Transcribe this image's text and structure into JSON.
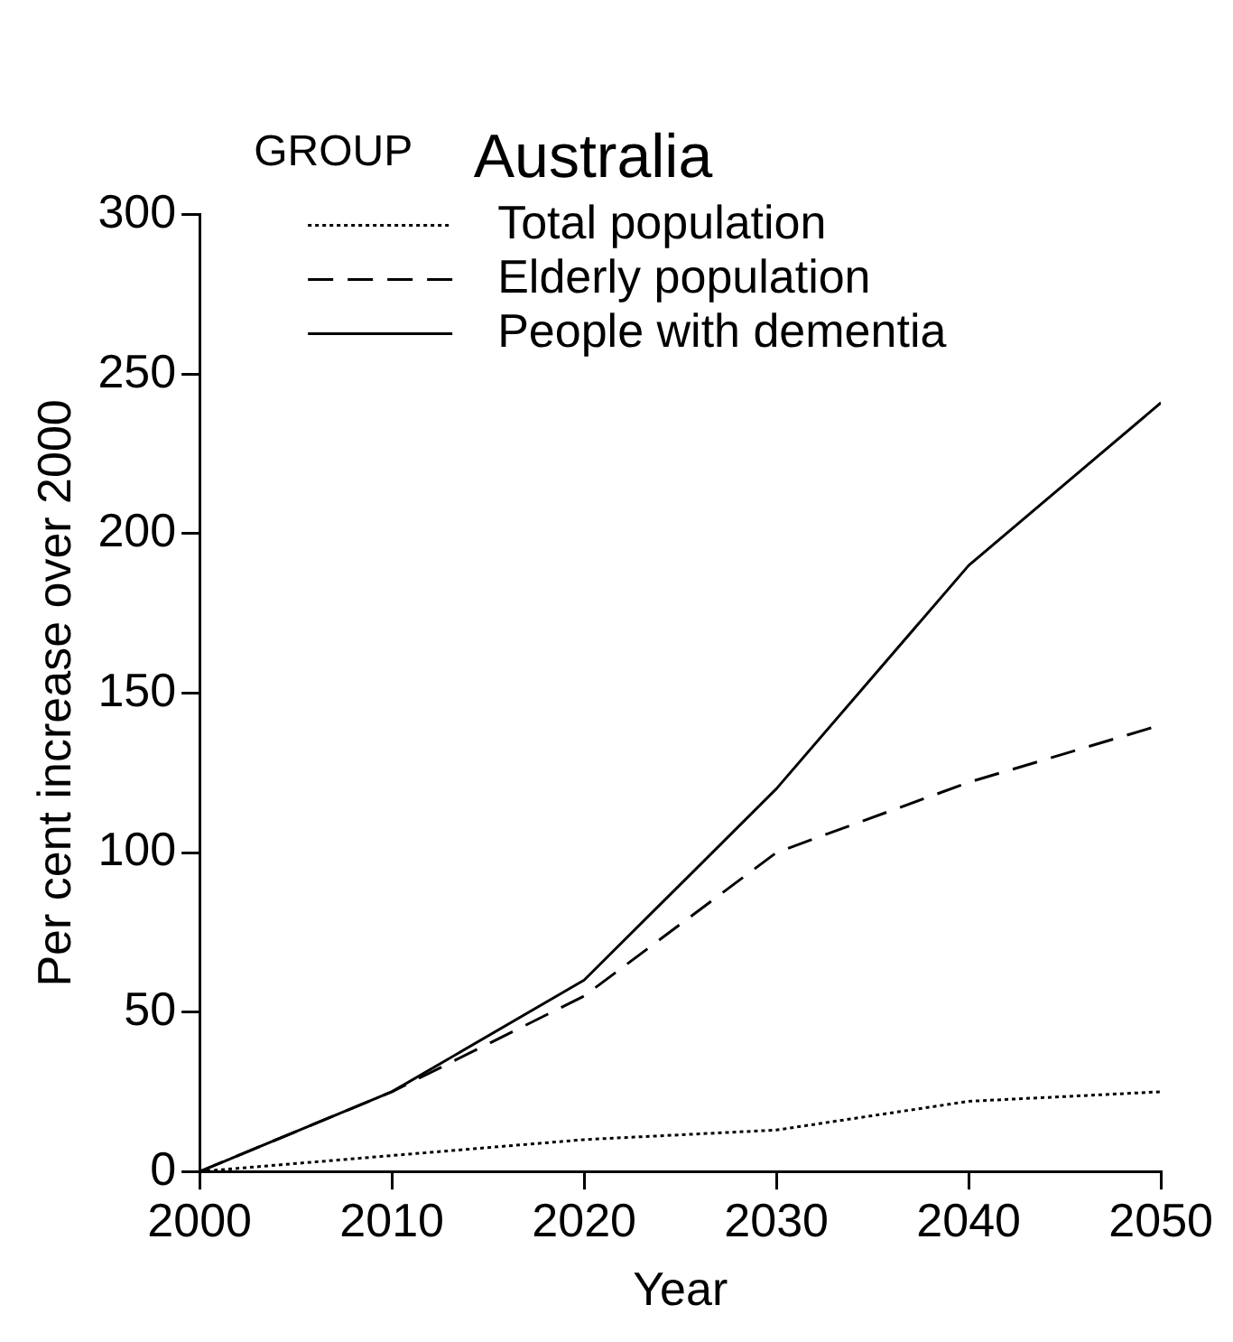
{
  "chart_data": {
    "type": "line",
    "title": "Australia",
    "xlabel": "Year",
    "ylabel": "Per cent increase over 2000",
    "legend_title": "GROUP",
    "legend": "top left",
    "grid": false,
    "marker": "none",
    "x": [
      2000,
      2010,
      2020,
      2030,
      2040,
      2050
    ],
    "xlim": [
      2000,
      2050
    ],
    "xticks": [
      2000,
      2010,
      2020,
      2030,
      2040,
      2050
    ],
    "ylim": [
      0,
      300
    ],
    "yticks": [
      0,
      50,
      100,
      150,
      200,
      250,
      300
    ],
    "series": [
      {
        "name": "Total population",
        "color": "#000000",
        "line_style": "dotted",
        "values": [
          0,
          5,
          10,
          13,
          22,
          25
        ]
      },
      {
        "name": "Elderly population",
        "color": "#000000",
        "line_style": "dashed",
        "values": [
          0,
          25,
          55,
          100,
          122,
          140
        ]
      },
      {
        "name": "People with dementia",
        "color": "#000000",
        "line_style": "solid",
        "values": [
          0,
          25,
          60,
          120,
          190,
          241
        ]
      }
    ]
  }
}
